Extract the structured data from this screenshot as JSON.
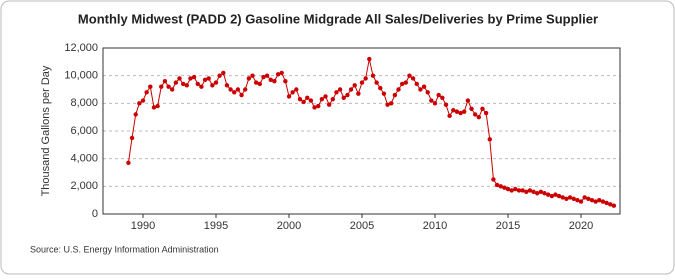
{
  "chart_data": {
    "type": "scatter",
    "title": "Monthly Midwest (PADD 2) Gasoline Midgrade All Sales/Deliveries by Prime Supplier",
    "y_label": "Thousand Gallons per Day",
    "source": "Source: U.S. Energy Information Administration",
    "color": "#cc0000",
    "grid": true,
    "xlim": [
      1987.26,
      2022.67
    ],
    "xticks": [
      1990,
      1995,
      2000,
      2005,
      2010,
      2015,
      2020
    ],
    "ylim": [
      0,
      12000
    ],
    "yticks": [
      0,
      {
        "value": 2000,
        "label": "2,000"
      },
      {
        "value": 4000,
        "label": "4,000"
      },
      {
        "value": 6000,
        "label": "6,000"
      },
      {
        "value": 8000,
        "label": "8,000"
      },
      {
        "value": 10000,
        "label": "10,000"
      },
      {
        "value": 12000,
        "label": "12,000"
      }
    ],
    "x": [
      1989,
      1989.25,
      1989.5,
      1989.75,
      1990,
      1990.25,
      1990.5,
      1990.75,
      1991,
      1991.25,
      1991.5,
      1991.75,
      1992,
      1992.25,
      1992.5,
      1992.75,
      1993,
      1993.25,
      1993.5,
      1993.75,
      1994,
      1994.25,
      1994.5,
      1994.75,
      1995,
      1995.25,
      1995.5,
      1995.75,
      1996,
      1996.25,
      1996.5,
      1996.75,
      1997,
      1997.25,
      1997.5,
      1997.75,
      1998,
      1998.25,
      1998.5,
      1998.75,
      1999,
      1999.25,
      1999.5,
      1999.75,
      2000,
      2000.25,
      2000.5,
      2000.75,
      2001,
      2001.25,
      2001.5,
      2001.75,
      2002,
      2002.25,
      2002.5,
      2002.75,
      2003,
      2003.25,
      2003.5,
      2003.75,
      2004,
      2004.25,
      2004.5,
      2004.75,
      2005,
      2005.25,
      2005.5,
      2005.75,
      2006,
      2006.25,
      2006.5,
      2006.75,
      2007,
      2007.25,
      2007.5,
      2007.75,
      2008,
      2008.25,
      2008.5,
      2008.75,
      2009,
      2009.25,
      2009.5,
      2009.75,
      2010,
      2010.25,
      2010.5,
      2010.75,
      2011,
      2011.25,
      2011.5,
      2011.75,
      2012,
      2012.25,
      2012.5,
      2012.75,
      2013,
      2013.25,
      2013.5,
      2013.75,
      2014,
      2014.25,
      2014.5,
      2014.75,
      2015,
      2015.25,
      2015.5,
      2015.75,
      2016,
      2016.25,
      2016.5,
      2016.75,
      2017,
      2017.25,
      2017.5,
      2017.75,
      2018,
      2018.25,
      2018.5,
      2018.75,
      2019,
      2019.25,
      2019.5,
      2019.75,
      2020,
      2020.25,
      2020.5,
      2020.75,
      2021,
      2021.25,
      2021.5,
      2021.75,
      2022,
      2022.25
    ],
    "values": [
      3700,
      5500,
      7200,
      8000,
      8200,
      8800,
      9200,
      7700,
      7800,
      9200,
      9600,
      9200,
      9000,
      9500,
      9800,
      9400,
      9300,
      9800,
      9900,
      9400,
      9200,
      9700,
      9800,
      9300,
      9500,
      10000,
      10200,
      9300,
      9000,
      8800,
      9000,
      8600,
      9000,
      9800,
      10000,
      9500,
      9400,
      9900,
      10000,
      9700,
      9600,
      10100,
      10200,
      9600,
      8500,
      8800,
      9000,
      8300,
      8100,
      8400,
      8200,
      7700,
      7800,
      8300,
      8500,
      7900,
      8300,
      8800,
      9000,
      8400,
      8600,
      9000,
      9300,
      8700,
      9500,
      9800,
      11200,
      10000,
      9500,
      9100,
      8700,
      7900,
      8000,
      8600,
      9000,
      9400,
      9500,
      10000,
      9800,
      9400,
      9000,
      9200,
      8800,
      8200,
      8000,
      8600,
      8400,
      7900,
      7100,
      7500,
      7400,
      7300,
      7400,
      8200,
      7600,
      7200,
      7000,
      7600,
      7300,
      5400,
      2500,
      2100,
      2000,
      1900,
      1800,
      1700,
      1800,
      1700,
      1700,
      1600,
      1700,
      1600,
      1500,
      1600,
      1500,
      1400,
      1300,
      1400,
      1300,
      1200,
      1100,
      1200,
      1100,
      1000,
      900,
      1200,
      1100,
      1000,
      900,
      1000,
      900,
      800,
      700,
      600
    ]
  }
}
